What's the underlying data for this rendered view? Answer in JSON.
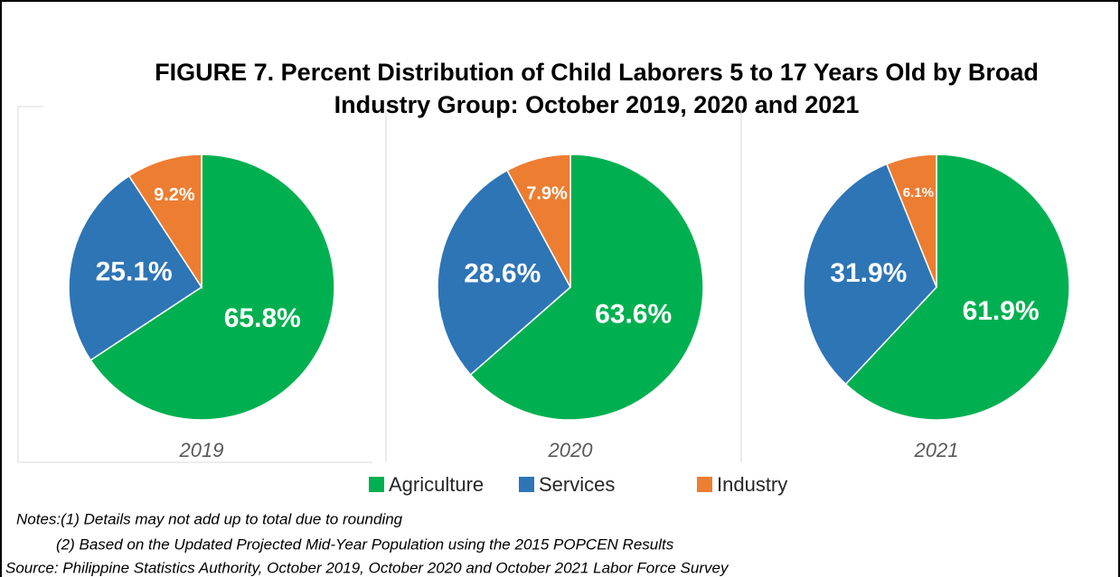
{
  "title": [
    "FIGURE 7. Percent Distribution of Child Laborers 5 to 17 Years Old by Broad",
    "Industry Group: October 2019, 2020 and 2021"
  ],
  "chart_data": [
    {
      "type": "pie",
      "label": "2019",
      "categories": [
        "Agriculture",
        "Services",
        "Industry"
      ],
      "values": [
        65.8,
        25.1,
        9.2
      ],
      "value_labels": [
        "65.8%",
        "25.1%",
        "9.2%"
      ],
      "colors": [
        "#00b050",
        "#2e75b6",
        "#ed7d31"
      ]
    },
    {
      "type": "pie",
      "label": "2020",
      "categories": [
        "Agriculture",
        "Services",
        "Industry"
      ],
      "values": [
        63.6,
        28.6,
        7.9
      ],
      "value_labels": [
        "63.6%",
        "28.6%",
        "7.9%"
      ],
      "colors": [
        "#00b050",
        "#2e75b6",
        "#ed7d31"
      ]
    },
    {
      "type": "pie",
      "label": "2021",
      "categories": [
        "Agriculture",
        "Services",
        "Industry"
      ],
      "values": [
        61.9,
        31.9,
        6.1
      ],
      "value_labels": [
        "61.9%",
        "31.9%",
        "6.1%"
      ],
      "colors": [
        "#00b050",
        "#2e75b6",
        "#ed7d31"
      ]
    }
  ],
  "notes": [
    "Notes:(1) Details may not add up to total due to rounding",
    "(2) Based on the Updated Projected Mid-Year Population using the 2015 POPCEN Results",
    "Source: Philippine Statistics Authority, October 2019, October 2020 and October 2021 Labor Force Survey"
  ]
}
